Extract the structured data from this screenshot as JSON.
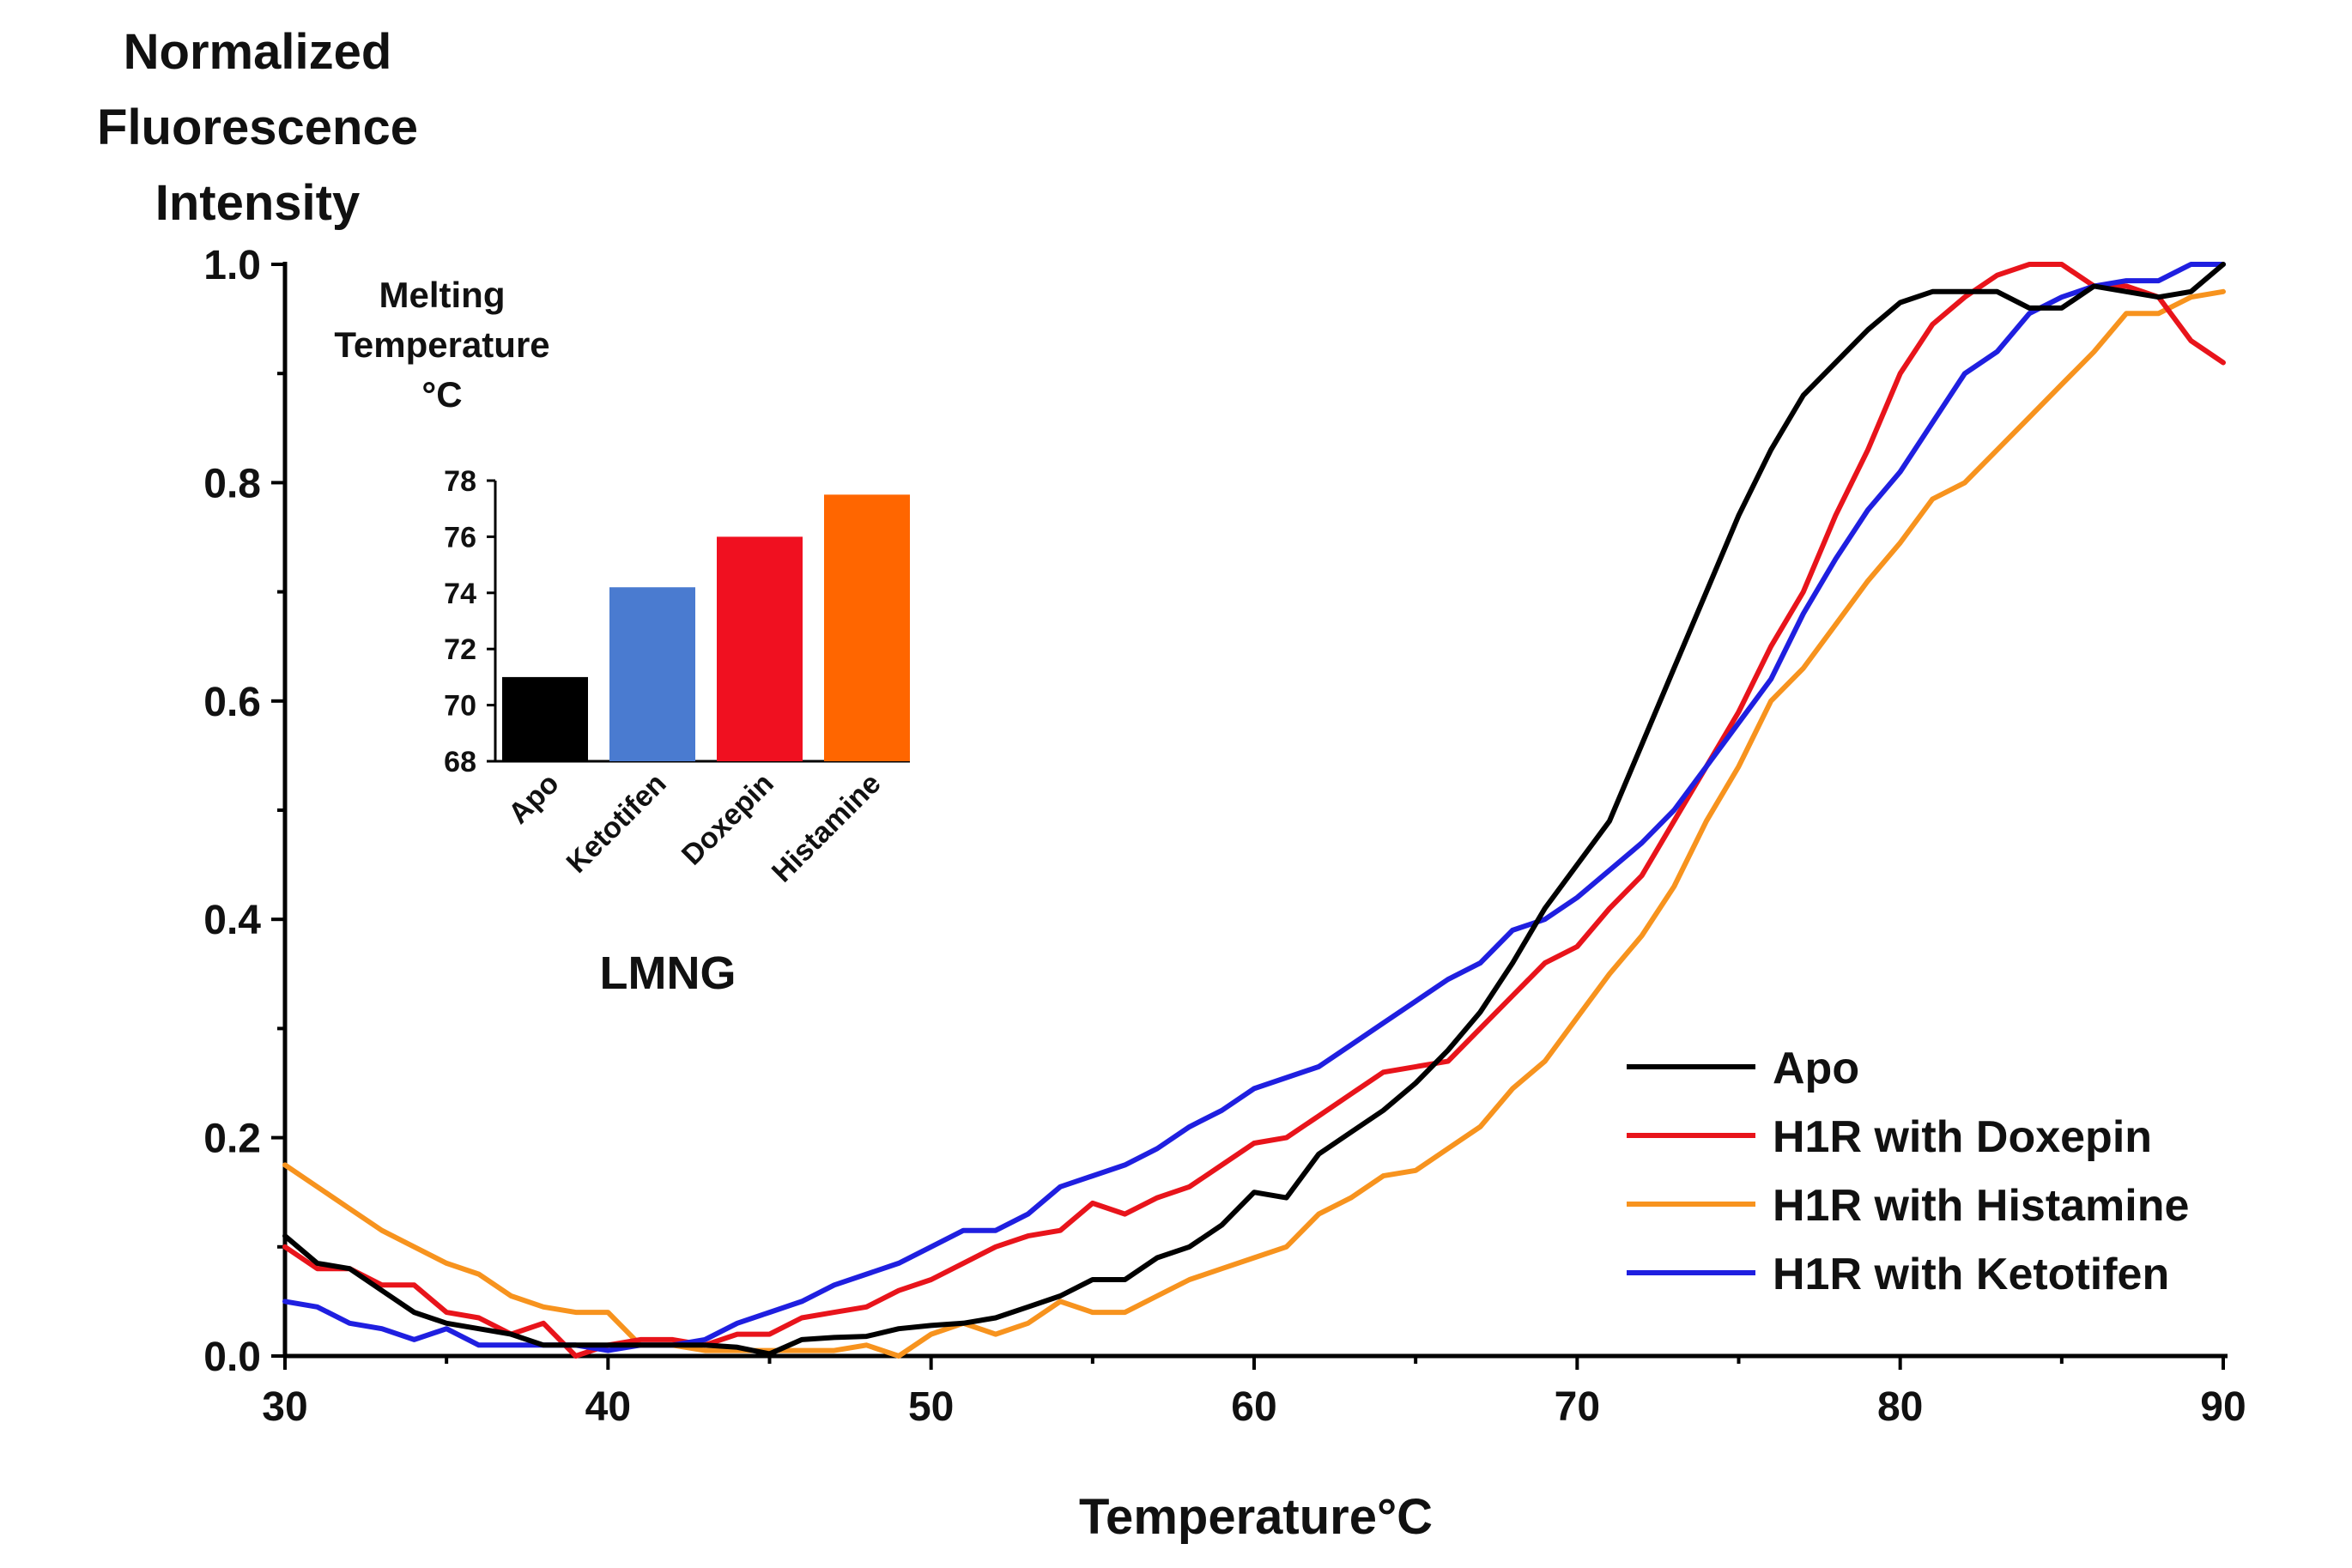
{
  "chart_data": [
    {
      "type": "line",
      "title": "",
      "ylabel_lines": [
        "Normalized",
        "Fluorescence",
        "Intensity"
      ],
      "xlabel": "Temperature°C",
      "xlim": [
        30,
        90
      ],
      "ylim": [
        0,
        1.0
      ],
      "xticks": [
        "30",
        "40",
        "50",
        "60",
        "70",
        "80",
        "90"
      ],
      "yticks": [
        "0.0",
        "0.2",
        "0.4",
        "0.6",
        "0.8",
        "1.0"
      ],
      "legend_position": "bottom-right",
      "series": [
        {
          "name": "Apo",
          "color": "#000000",
          "x": [
            30,
            31,
            32,
            33,
            34,
            35,
            36,
            37,
            38,
            39,
            40,
            41,
            42,
            43,
            44,
            45,
            46,
            47,
            48,
            49,
            50,
            51,
            52,
            53,
            54,
            55,
            56,
            57,
            58,
            59,
            60,
            61,
            62,
            63,
            64,
            65,
            66,
            67,
            68,
            69,
            70,
            71,
            72,
            73,
            74,
            75,
            76,
            77,
            78,
            79,
            80,
            81,
            82,
            83,
            84,
            85,
            86,
            87,
            88,
            89,
            90
          ],
          "y": [
            0.11,
            0.085,
            0.08,
            0.06,
            0.04,
            0.03,
            0.025,
            0.02,
            0.01,
            0.01,
            0.01,
            0.01,
            0.01,
            0.01,
            0.008,
            0.002,
            0.015,
            0.017,
            0.018,
            0.025,
            0.028,
            0.03,
            0.035,
            0.045,
            0.055,
            0.07,
            0.07,
            0.09,
            0.1,
            0.12,
            0.15,
            0.145,
            0.185,
            0.205,
            0.225,
            0.25,
            0.28,
            0.315,
            0.36,
            0.41,
            0.45,
            0.49,
            0.56,
            0.63,
            0.7,
            0.77,
            0.83,
            0.88,
            0.91,
            0.94,
            0.965,
            0.975,
            0.975,
            0.975,
            0.96,
            0.96,
            0.98,
            0.975,
            0.97,
            0.975,
            1.0
          ]
        },
        {
          "name": "H1R with Doxepin",
          "color": "#e8141b",
          "x": [
            30,
            31,
            32,
            33,
            34,
            35,
            36,
            37,
            38,
            39,
            40,
            41,
            42,
            43,
            44,
            45,
            46,
            47,
            48,
            49,
            50,
            51,
            52,
            53,
            54,
            55,
            56,
            57,
            58,
            59,
            60,
            61,
            62,
            63,
            64,
            65,
            66,
            67,
            68,
            69,
            70,
            71,
            72,
            73,
            74,
            75,
            76,
            77,
            78,
            79,
            80,
            81,
            82,
            83,
            84,
            85,
            86,
            87,
            88,
            89,
            90
          ],
          "y": [
            0.1,
            0.08,
            0.08,
            0.065,
            0.065,
            0.04,
            0.035,
            0.02,
            0.03,
            0.0,
            0.01,
            0.015,
            0.015,
            0.01,
            0.02,
            0.02,
            0.035,
            0.04,
            0.045,
            0.06,
            0.07,
            0.085,
            0.1,
            0.11,
            0.115,
            0.14,
            0.13,
            0.145,
            0.155,
            0.175,
            0.195,
            0.2,
            0.22,
            0.24,
            0.26,
            0.265,
            0.27,
            0.3,
            0.33,
            0.36,
            0.375,
            0.41,
            0.44,
            0.49,
            0.54,
            0.59,
            0.65,
            0.7,
            0.77,
            0.83,
            0.9,
            0.945,
            0.97,
            0.99,
            1.0,
            1.0,
            0.98,
            0.98,
            0.97,
            0.93,
            0.91
          ]
        },
        {
          "name": "H1R with Histamine",
          "color": "#f7931e",
          "x": [
            30,
            31,
            32,
            33,
            34,
            35,
            36,
            37,
            38,
            39,
            40,
            41,
            42,
            43,
            44,
            45,
            46,
            47,
            48,
            49,
            50,
            51,
            52,
            53,
            54,
            55,
            56,
            57,
            58,
            59,
            60,
            61,
            62,
            63,
            64,
            65,
            66,
            67,
            68,
            69,
            70,
            71,
            72,
            73,
            74,
            75,
            76,
            77,
            78,
            79,
            80,
            81,
            82,
            83,
            84,
            85,
            86,
            87,
            88,
            89,
            90
          ],
          "y": [
            0.175,
            0.155,
            0.135,
            0.115,
            0.1,
            0.085,
            0.075,
            0.055,
            0.045,
            0.04,
            0.04,
            0.01,
            0.01,
            0.005,
            0.005,
            0.005,
            0.005,
            0.005,
            0.01,
            0.0,
            0.02,
            0.03,
            0.02,
            0.03,
            0.05,
            0.04,
            0.04,
            0.055,
            0.07,
            0.08,
            0.09,
            0.1,
            0.13,
            0.145,
            0.165,
            0.17,
            0.19,
            0.21,
            0.245,
            0.27,
            0.31,
            0.35,
            0.385,
            0.43,
            0.49,
            0.54,
            0.6,
            0.63,
            0.67,
            0.71,
            0.745,
            0.785,
            0.8,
            0.83,
            0.86,
            0.89,
            0.92,
            0.955,
            0.955,
            0.97,
            0.975
          ]
        },
        {
          "name": "H1R with Ketotifen",
          "color": "#1f1fe0",
          "x": [
            30,
            31,
            32,
            33,
            34,
            35,
            36,
            37,
            38,
            39,
            40,
            41,
            42,
            43,
            44,
            45,
            46,
            47,
            48,
            49,
            50,
            51,
            52,
            53,
            54,
            55,
            56,
            57,
            58,
            59,
            60,
            61,
            62,
            63,
            64,
            65,
            66,
            67,
            68,
            69,
            70,
            71,
            72,
            73,
            74,
            75,
            76,
            77,
            78,
            79,
            80,
            81,
            82,
            83,
            84,
            85,
            86,
            87,
            88,
            89,
            90
          ],
          "y": [
            0.05,
            0.045,
            0.03,
            0.025,
            0.015,
            0.025,
            0.01,
            0.01,
            0.01,
            0.01,
            0.005,
            0.01,
            0.01,
            0.015,
            0.03,
            0.04,
            0.05,
            0.065,
            0.075,
            0.085,
            0.1,
            0.115,
            0.115,
            0.13,
            0.155,
            0.165,
            0.175,
            0.19,
            0.21,
            0.225,
            0.245,
            0.255,
            0.265,
            0.285,
            0.305,
            0.325,
            0.345,
            0.36,
            0.39,
            0.4,
            0.42,
            0.445,
            0.47,
            0.5,
            0.54,
            0.58,
            0.62,
            0.68,
            0.73,
            0.775,
            0.81,
            0.855,
            0.9,
            0.92,
            0.955,
            0.97,
            0.98,
            0.985,
            0.985,
            1.0,
            1.0
          ]
        }
      ]
    },
    {
      "type": "bar",
      "title_lines": [
        "Melting",
        "Temperature",
        "°C"
      ],
      "xlabel": "LMNG",
      "categories": [
        "Apo",
        "Ketotifen",
        "Doxepin",
        "Histamine"
      ],
      "values": [
        71.0,
        74.2,
        76.0,
        77.5
      ],
      "colors": [
        "#000000",
        "#4a7bd0",
        "#f01020",
        "#ff6600"
      ],
      "ylim": [
        68,
        78
      ],
      "yticks": [
        "68",
        "70",
        "72",
        "74",
        "76",
        "78"
      ]
    }
  ]
}
